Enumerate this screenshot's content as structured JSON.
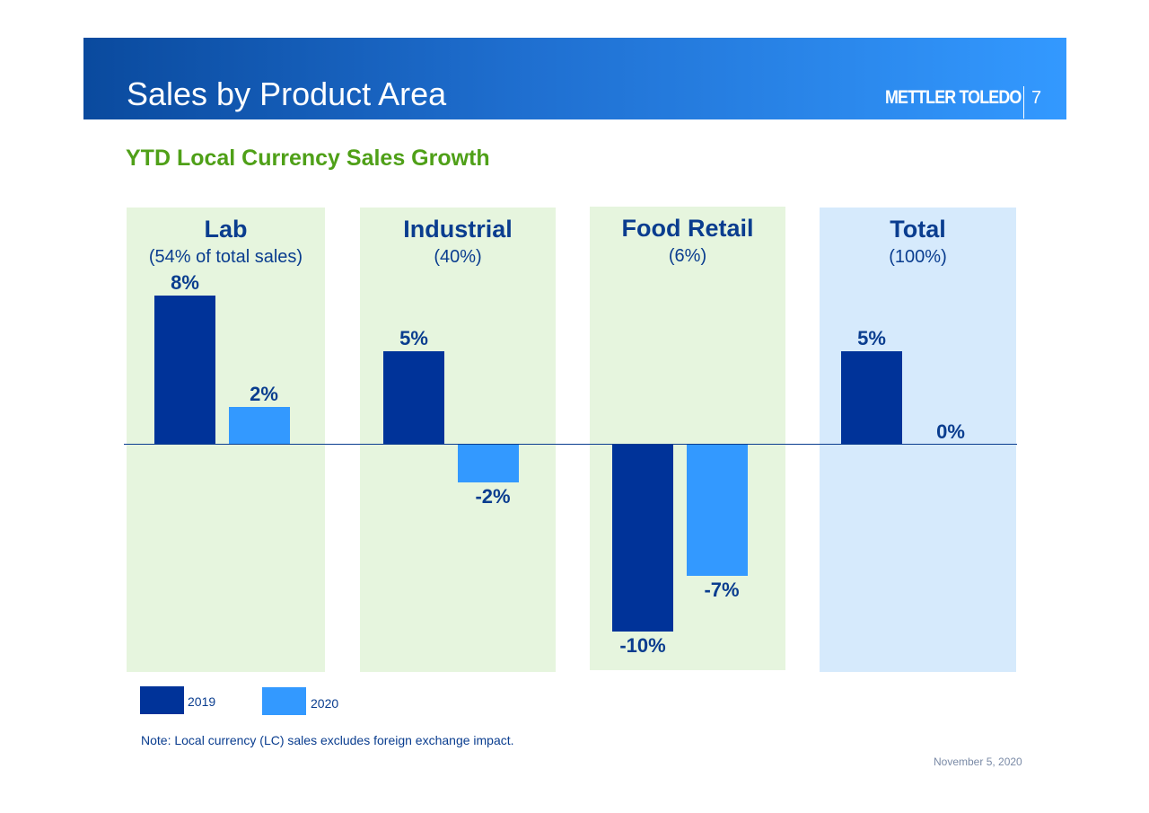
{
  "header": {
    "title": "Sales by Product Area",
    "logo": "METTLER TOLEDO",
    "page_number": "7"
  },
  "chart_data": {
    "type": "bar",
    "title": "YTD Local Currency Sales Growth",
    "unit": "%",
    "categories": [
      {
        "name": "Lab",
        "share": "(54% of total sales)"
      },
      {
        "name": "Industrial",
        "share": "(40%)"
      },
      {
        "name": "Food Retail",
        "share": "(6%)"
      },
      {
        "name": "Total",
        "share": "(100%)"
      }
    ],
    "series": [
      {
        "name": "2019",
        "color": "#003399",
        "values": [
          8,
          5,
          -10,
          5
        ],
        "labels": [
          "8%",
          "5%",
          "-10%",
          "5%"
        ]
      },
      {
        "name": "2020",
        "color": "#3399ff",
        "values": [
          2,
          -2,
          -7,
          0
        ],
        "labels": [
          "2%",
          "-2%",
          "-7%",
          "0%"
        ]
      }
    ],
    "panel_colors": [
      "#e6f5de",
      "#e6f5de",
      "#e6f5de",
      "#d6eafc"
    ],
    "legend": "bottom-left"
  },
  "footer": {
    "note": "Note:  Local currency (LC) sales excludes foreign exchange impact.",
    "date": "November 5, 2020"
  }
}
